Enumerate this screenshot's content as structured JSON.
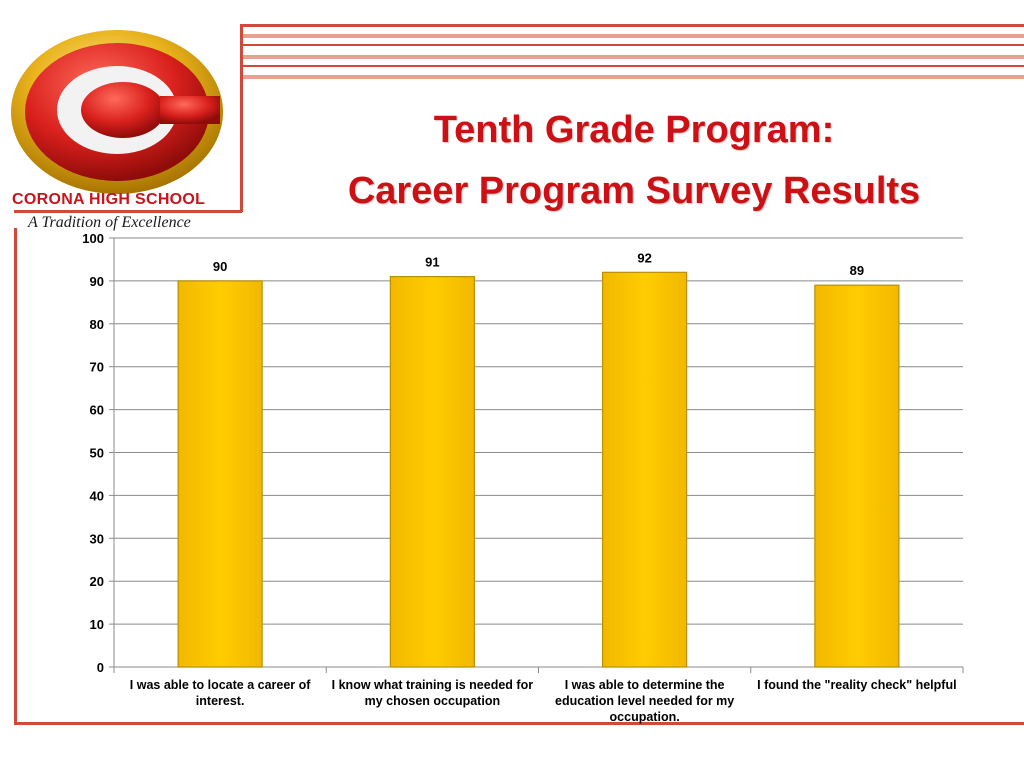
{
  "header": {
    "school_name": "CORONA HIGH SCHOOL",
    "motto": "A Tradition of Excellence",
    "logo_letter": "C",
    "title_line1": "Tenth Grade Program:",
    "title_line2": "Career Program Survey Results"
  },
  "colors": {
    "title": "#cc1116",
    "bar_fill": "#ffcc00",
    "bar_edge": "#b89000",
    "logo_red": "#d9201c",
    "logo_gold": "#e8b21b",
    "frame_line": "#d04a3a"
  },
  "chart_data": {
    "type": "bar",
    "categories": [
      "I was able to locate a career of interest.",
      "I know what training is needed for my chosen occupation",
      "I was able to determine the education level needed for my occupation.",
      "I found the \"reality check\" helpful"
    ],
    "values": [
      90,
      91,
      92,
      89
    ],
    "data_labels": [
      "90",
      "91",
      "92",
      "89"
    ],
    "title": "",
    "xlabel": "",
    "ylabel": "",
    "ylim": [
      0,
      100
    ],
    "yticks": [
      0,
      10,
      20,
      30,
      40,
      50,
      60,
      70,
      80,
      90,
      100
    ],
    "grid": true,
    "legend": "none"
  }
}
